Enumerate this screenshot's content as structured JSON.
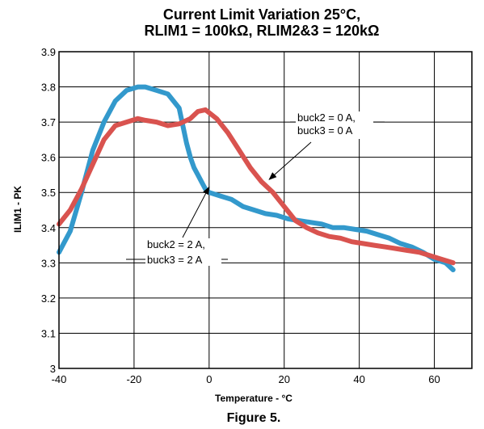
{
  "chart_data": {
    "type": "line",
    "title_line1": "Current Limit Variation 25°C,",
    "title_line2": "RLIM1 = 100kΩ, RLIM2&3 = 120kΩ",
    "xlabel": "Temperature - °C",
    "ylabel": "ILIM1 - PK",
    "xlim": [
      -40,
      70
    ],
    "ylim": [
      3.0,
      3.9
    ],
    "xticks": [
      -40,
      -20,
      0,
      20,
      40,
      60
    ],
    "xtick_labels": [
      "-40",
      "-20",
      "0",
      "20",
      "40",
      "60"
    ],
    "yticks": [
      3.0,
      3.1,
      3.2,
      3.3,
      3.4,
      3.5,
      3.6,
      3.7,
      3.8,
      3.9
    ],
    "ytick_labels": [
      "3",
      "3.1",
      "3.2",
      "3.3",
      "3.4",
      "3.5",
      "3.6",
      "3.7",
      "3.8",
      "3.9"
    ],
    "grid": true,
    "series": [
      {
        "color": "#3399cc",
        "x": [
          -40,
          -37,
          -34,
          -31,
          -28,
          -25,
          -22,
          -19,
          -17,
          -14,
          -11,
          -8,
          -6,
          -5,
          -4,
          -3,
          -2,
          -1,
          0,
          3,
          6,
          9,
          12,
          15,
          18,
          21,
          24,
          27,
          30,
          33,
          36,
          39,
          42,
          45,
          48,
          51,
          54,
          57,
          60,
          63,
          65
        ],
        "y": [
          3.33,
          3.39,
          3.5,
          3.62,
          3.7,
          3.76,
          3.79,
          3.8,
          3.8,
          3.79,
          3.78,
          3.74,
          3.64,
          3.6,
          3.57,
          3.55,
          3.53,
          3.51,
          3.5,
          3.49,
          3.48,
          3.46,
          3.45,
          3.44,
          3.435,
          3.425,
          3.42,
          3.415,
          3.41,
          3.4,
          3.4,
          3.395,
          3.39,
          3.38,
          3.37,
          3.355,
          3.345,
          3.33,
          3.31,
          3.3,
          3.28
        ]
      },
      {
        "color": "#d9534f",
        "x": [
          -40,
          -37,
          -34,
          -31,
          -28,
          -25,
          -22,
          -19,
          -17,
          -14,
          -11,
          -8,
          -5,
          -3,
          -1,
          2,
          5,
          8,
          11,
          14,
          17,
          20,
          23,
          26,
          29,
          32,
          35,
          38,
          41,
          44,
          47,
          50,
          53,
          56,
          59,
          62,
          65
        ],
        "y": [
          3.41,
          3.45,
          3.51,
          3.58,
          3.65,
          3.69,
          3.7,
          3.71,
          3.705,
          3.7,
          3.69,
          3.695,
          3.71,
          3.73,
          3.735,
          3.71,
          3.67,
          3.62,
          3.57,
          3.53,
          3.5,
          3.46,
          3.42,
          3.4,
          3.385,
          3.375,
          3.37,
          3.36,
          3.355,
          3.35,
          3.345,
          3.34,
          3.335,
          3.33,
          3.32,
          3.31,
          3.3
        ]
      }
    ],
    "annotations": [
      {
        "line1": "buck2 = 0 A,",
        "line2": "buck3 = 0 A",
        "target_x": 16,
        "target_y": 3.53
      },
      {
        "line1": "buck2 = 2 A,",
        "line2": "buck3 = 2 A",
        "target_x": 0,
        "target_y": 3.52
      }
    ],
    "caption": "Figure 5."
  }
}
